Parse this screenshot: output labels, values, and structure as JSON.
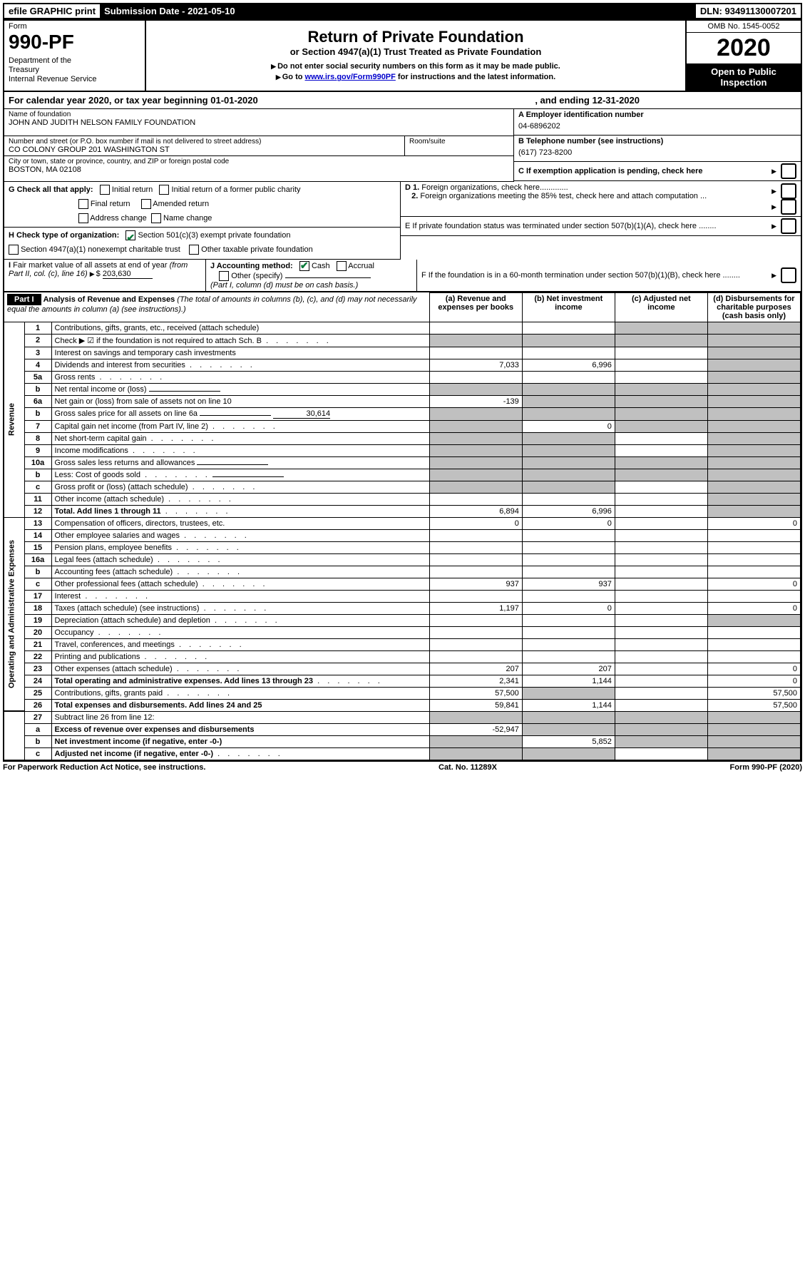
{
  "top_bar": {
    "efile": "efile GRAPHIC print",
    "submission": "Submission Date - 2021-05-10",
    "dln": "DLN: 93491130007201"
  },
  "header": {
    "form_label": "Form",
    "form_number": "990-PF",
    "dept": "Department of the Treasury\nInternal Revenue Service",
    "title": "Return of Private Foundation",
    "subtitle": "or Section 4947(a)(1) Trust Treated as Private Foundation",
    "note1": "Do not enter social security numbers on this form as it may be made public.",
    "note2_prefix": "Go to ",
    "note2_link": "www.irs.gov/Form990PF",
    "note2_suffix": " for instructions and the latest information.",
    "omb": "OMB No. 1545-0052",
    "year": "2020",
    "open_pub": "Open to Public Inspection"
  },
  "calendar": {
    "prefix": "For calendar year 2020, or tax year beginning ",
    "begin": "01-01-2020",
    "middle": ", and ending ",
    "end": "12-31-2020"
  },
  "entity": {
    "name_label": "Name of foundation",
    "name": "JOHN AND JUDITH NELSON FAMILY FOUNDATION",
    "addr_label": "Number and street (or P.O. box number if mail is not delivered to street address)",
    "addr": "CO COLONY GROUP 201 WASHINGTON ST",
    "room_label": "Room/suite",
    "city_label": "City or town, state or province, country, and ZIP or foreign postal code",
    "city": "BOSTON, MA  02108",
    "ein_label": "A Employer identification number",
    "ein": "04-6896202",
    "phone_label": "B Telephone number (see instructions)",
    "phone": "(617) 723-8200",
    "c_label": "C If exemption application is pending, check here"
  },
  "checks": {
    "g_label": "G Check all that apply:",
    "g_items": [
      "Initial return",
      "Initial return of a former public charity",
      "Final return",
      "Amended return",
      "Address change",
      "Name change"
    ],
    "h_label": "H Check type of organization:",
    "h1": "Section 501(c)(3) exempt private foundation",
    "h2": "Section 4947(a)(1) nonexempt charitable trust",
    "h3": "Other taxable private foundation",
    "i_label": "I Fair market value of all assets at end of year (from Part II, col. (c), line 16)",
    "i_value": "203,630",
    "j_label": "J Accounting method:",
    "j_cash": "Cash",
    "j_accrual": "Accrual",
    "j_other": "Other (specify)",
    "j_note": "(Part I, column (d) must be on cash basis.)",
    "d1": "D 1. Foreign organizations, check here",
    "d2": "2. Foreign organizations meeting the 85% test, check here and attach computation ...",
    "e": "E  If private foundation status was terminated under section 507(b)(1)(A), check here ........",
    "f": "F  If the foundation is in a 60-month termination under section 507(b)(1)(B), check here ........"
  },
  "part1": {
    "label": "Part I",
    "title": "Analysis of Revenue and Expenses",
    "title_note": "(The total of amounts in columns (b), (c), and (d) may not necessarily equal the amounts in column (a) (see instructions).)",
    "col_a": "(a) Revenue and expenses per books",
    "col_b": "(b) Net investment income",
    "col_c": "(c) Adjusted net income",
    "col_d": "(d) Disbursements for charitable purposes (cash basis only)"
  },
  "vert": {
    "revenue": "Revenue",
    "expenses": "Operating and Administrative Expenses"
  },
  "rows": [
    {
      "n": "1",
      "desc": "Contributions, gifts, grants, etc., received (attach schedule)",
      "a": "",
      "b": "",
      "c": "g",
      "d": "g"
    },
    {
      "n": "2",
      "desc": "Check ▶ ☑ if the foundation is not required to attach Sch. B",
      "a": "g",
      "b": "g",
      "c": "g",
      "d": "g",
      "dots": true
    },
    {
      "n": "3",
      "desc": "Interest on savings and temporary cash investments",
      "a": "",
      "b": "",
      "c": "",
      "d": "g"
    },
    {
      "n": "4",
      "desc": "Dividends and interest from securities",
      "a": "7,033",
      "b": "6,996",
      "c": "",
      "d": "g",
      "dots": true
    },
    {
      "n": "5a",
      "desc": "Gross rents",
      "a": "",
      "b": "",
      "c": "",
      "d": "g",
      "dots": true
    },
    {
      "n": "b",
      "desc": "Net rental income or (loss)",
      "a": "g",
      "b": "g",
      "c": "g",
      "d": "g",
      "fill": true
    },
    {
      "n": "6a",
      "desc": "Net gain or (loss) from sale of assets not on line 10",
      "a": "-139",
      "b": "g",
      "c": "g",
      "d": "g"
    },
    {
      "n": "b",
      "desc": "Gross sales price for all assets on line 6a",
      "extra": "30,614",
      "a": "g",
      "b": "g",
      "c": "g",
      "d": "g",
      "fill": true
    },
    {
      "n": "7",
      "desc": "Capital gain net income (from Part IV, line 2)",
      "a": "g",
      "b": "0",
      "c": "g",
      "d": "g",
      "dots": true
    },
    {
      "n": "8",
      "desc": "Net short-term capital gain",
      "a": "g",
      "b": "g",
      "c": "",
      "d": "g",
      "dots": true
    },
    {
      "n": "9",
      "desc": "Income modifications",
      "a": "g",
      "b": "g",
      "c": "",
      "d": "g",
      "dots": true
    },
    {
      "n": "10a",
      "desc": "Gross sales less returns and allowances",
      "a": "g",
      "b": "g",
      "c": "g",
      "d": "g",
      "fill": true
    },
    {
      "n": "b",
      "desc": "Less: Cost of goods sold",
      "a": "g",
      "b": "g",
      "c": "g",
      "d": "g",
      "dots": true,
      "fill": true
    },
    {
      "n": "c",
      "desc": "Gross profit or (loss) (attach schedule)",
      "a": "g",
      "b": "g",
      "c": "",
      "d": "g",
      "dots": true
    },
    {
      "n": "11",
      "desc": "Other income (attach schedule)",
      "a": "",
      "b": "",
      "c": "",
      "d": "g",
      "dots": true
    },
    {
      "n": "12",
      "desc": "Total. Add lines 1 through 11",
      "bold": true,
      "a": "6,894",
      "b": "6,996",
      "c": "",
      "d": "g",
      "dots": true
    },
    {
      "n": "13",
      "desc": "Compensation of officers, directors, trustees, etc.",
      "a": "0",
      "b": "0",
      "c": "",
      "d": "0",
      "section": "exp"
    },
    {
      "n": "14",
      "desc": "Other employee salaries and wages",
      "a": "",
      "b": "",
      "c": "",
      "d": "",
      "dots": true
    },
    {
      "n": "15",
      "desc": "Pension plans, employee benefits",
      "a": "",
      "b": "",
      "c": "",
      "d": "",
      "dots": true
    },
    {
      "n": "16a",
      "desc": "Legal fees (attach schedule)",
      "a": "",
      "b": "",
      "c": "",
      "d": "",
      "dots": true
    },
    {
      "n": "b",
      "desc": "Accounting fees (attach schedule)",
      "a": "",
      "b": "",
      "c": "",
      "d": "",
      "dots": true
    },
    {
      "n": "c",
      "desc": "Other professional fees (attach schedule)",
      "a": "937",
      "b": "937",
      "c": "",
      "d": "0",
      "dots": true
    },
    {
      "n": "17",
      "desc": "Interest",
      "a": "",
      "b": "",
      "c": "",
      "d": "",
      "dots": true
    },
    {
      "n": "18",
      "desc": "Taxes (attach schedule) (see instructions)",
      "a": "1,197",
      "b": "0",
      "c": "",
      "d": "0",
      "dots": true
    },
    {
      "n": "19",
      "desc": "Depreciation (attach schedule) and depletion",
      "a": "",
      "b": "",
      "c": "",
      "d": "g",
      "dots": true
    },
    {
      "n": "20",
      "desc": "Occupancy",
      "a": "",
      "b": "",
      "c": "",
      "d": "",
      "dots": true
    },
    {
      "n": "21",
      "desc": "Travel, conferences, and meetings",
      "a": "",
      "b": "",
      "c": "",
      "d": "",
      "dots": true
    },
    {
      "n": "22",
      "desc": "Printing and publications",
      "a": "",
      "b": "",
      "c": "",
      "d": "",
      "dots": true
    },
    {
      "n": "23",
      "desc": "Other expenses (attach schedule)",
      "a": "207",
      "b": "207",
      "c": "",
      "d": "0",
      "dots": true
    },
    {
      "n": "24",
      "desc": "Total operating and administrative expenses. Add lines 13 through 23",
      "bold": true,
      "a": "2,341",
      "b": "1,144",
      "c": "",
      "d": "0",
      "dots": true
    },
    {
      "n": "25",
      "desc": "Contributions, gifts, grants paid",
      "a": "57,500",
      "b": "g",
      "c": "",
      "d": "57,500",
      "dots": true
    },
    {
      "n": "26",
      "desc": "Total expenses and disbursements. Add lines 24 and 25",
      "bold": true,
      "a": "59,841",
      "b": "1,144",
      "c": "",
      "d": "57,500"
    },
    {
      "n": "27",
      "desc": "Subtract line 26 from line 12:",
      "a": "g",
      "b": "g",
      "c": "g",
      "d": "g",
      "section": "final"
    },
    {
      "n": "a",
      "desc": "Excess of revenue over expenses and disbursements",
      "bold": true,
      "a": "-52,947",
      "b": "g",
      "c": "g",
      "d": "g"
    },
    {
      "n": "b",
      "desc": "Net investment income (if negative, enter -0-)",
      "bold": true,
      "a": "g",
      "b": "5,852",
      "c": "g",
      "d": "g"
    },
    {
      "n": "c",
      "desc": "Adjusted net income (if negative, enter -0-)",
      "bold": true,
      "a": "g",
      "b": "g",
      "c": "",
      "d": "g",
      "dots": true
    }
  ],
  "footer": {
    "left": "For Paperwork Reduction Act Notice, see instructions.",
    "center": "Cat. No. 11289X",
    "right": "Form 990-PF (2020)"
  },
  "layout": {
    "col_widths": {
      "vert": 28,
      "num": 38,
      "desc": 530,
      "data": 130
    }
  }
}
